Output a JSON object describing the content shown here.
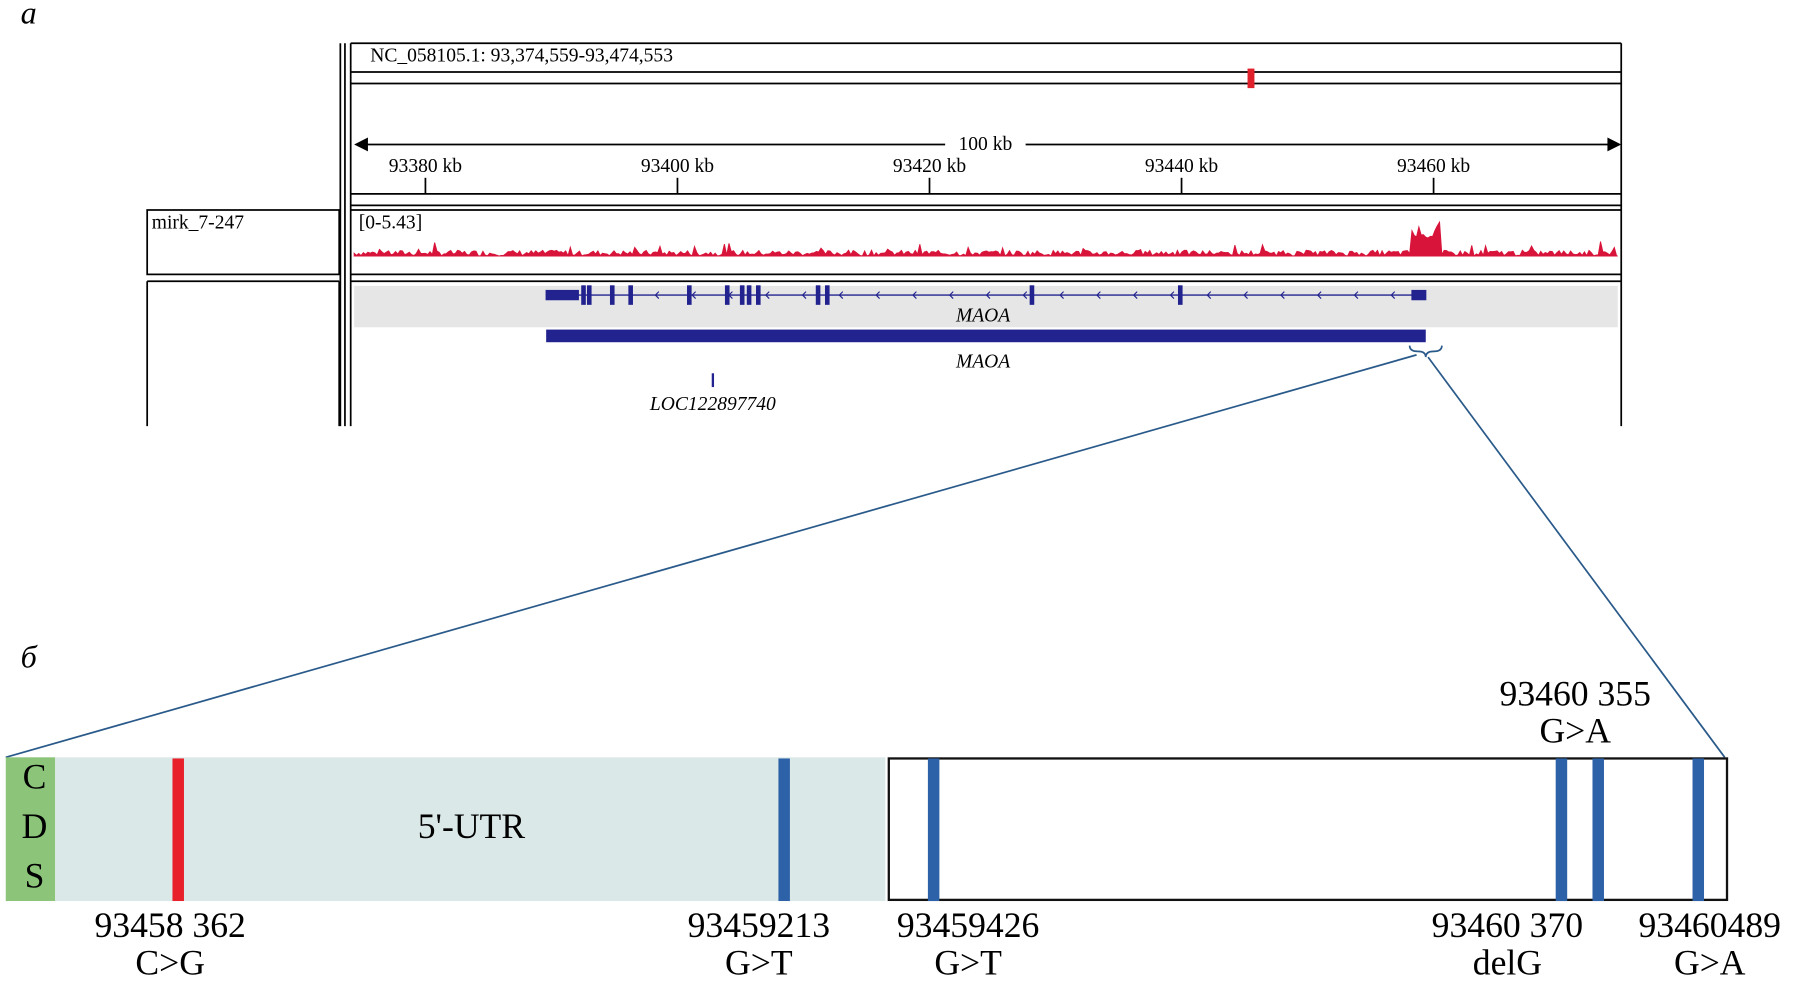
{
  "panel_a": {
    "label": "а",
    "locus": "NC_058105.1: 93,374,559-93,474,553",
    "scale": "100 kb",
    "ruler_ticks": [
      "93380 kb",
      "93400 kb",
      "93420 kb",
      "93440 kb",
      "93460 kb"
    ],
    "track": {
      "name": "mirk_7-247",
      "range": "[0-5.43]"
    },
    "genes": [
      "MAOA",
      "MAOA",
      "LOC122897740"
    ]
  },
  "panel_b": {
    "label": "б",
    "cds": [
      "C",
      "D",
      "S"
    ],
    "region": "5'-UTR",
    "variants": [
      {
        "position": "93458 362",
        "change": "C>G"
      },
      {
        "position": "93459213",
        "change": "G>T"
      },
      {
        "position": "93459426",
        "change": "G>T"
      },
      {
        "position": "93460 370",
        "change": "delG"
      },
      {
        "position": "93460 355",
        "change": "G>A"
      },
      {
        "position": "93460489",
        "change": "G>A"
      }
    ]
  }
}
